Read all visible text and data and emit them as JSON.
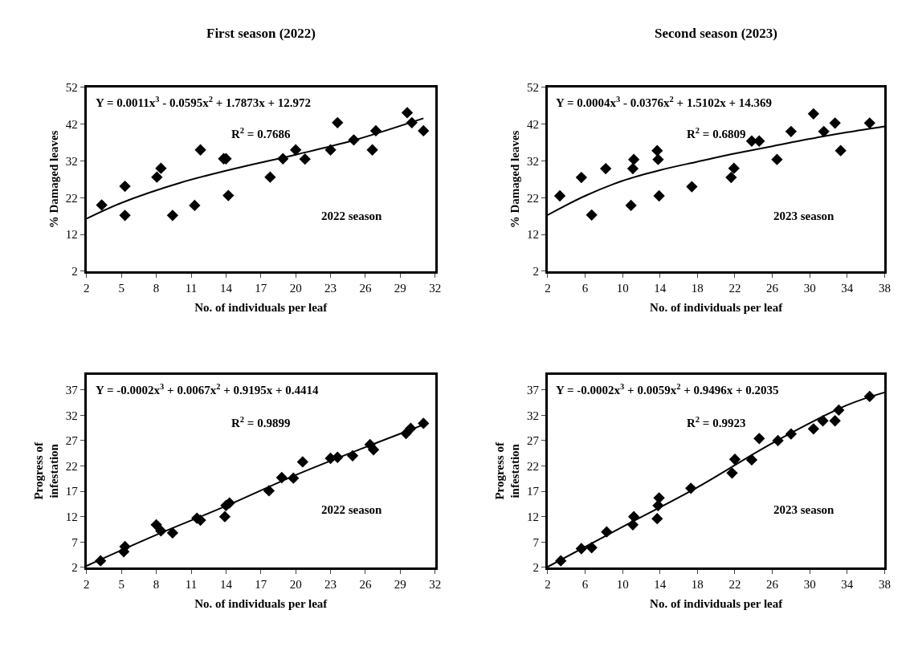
{
  "chart_data": [
    {
      "type": "scatter",
      "title": "First season (2022)",
      "xlabel": "No. of individuals per leaf",
      "ylabel": "% Damaged leaves",
      "xlim": [
        2,
        32
      ],
      "xticks": [
        2,
        5,
        8,
        11,
        14,
        17,
        20,
        23,
        26,
        29,
        32
      ],
      "ylim": [
        2,
        52
      ],
      "yticks": [
        2,
        12,
        22,
        32,
        42,
        52
      ],
      "marker": "diamond",
      "annotations": [
        "Y = 0.0011x$^{3}$ - 0.0595x$^{2}$ + 1.7873x + 12.972",
        "R$^{2}$ = 0.7686",
        "2022 season"
      ],
      "series": [
        {
          "color": "#000000",
          "x": [
            3.3,
            5.3,
            5.3,
            8.05,
            8.4,
            9.4,
            11.3,
            11.8,
            13.8,
            14.0,
            14.2,
            17.8,
            18.9,
            20.0,
            20.8,
            23.0,
            23.6,
            25.0,
            26.6,
            26.9,
            29.6,
            30.0,
            31.0
          ],
          "values": [
            20.0,
            25.1,
            17.2,
            27.6,
            30.0,
            17.2,
            19.9,
            35.0,
            32.6,
            32.6,
            22.6,
            27.6,
            32.6,
            35.0,
            32.5,
            35.0,
            42.4,
            37.7,
            35.0,
            40.2,
            45.1,
            42.4,
            40.2
          ]
        },
        {
          "type": "line",
          "marker": "none",
          "color": "#000000",
          "x": [
            2,
            5,
            10,
            15,
            20,
            25,
            31
          ],
          "values": [
            16.3,
            20.6,
            26.0,
            30.1,
            33.7,
            37.6,
            43.6
          ]
        }
      ]
    },
    {
      "type": "scatter",
      "title": "Second season (2023)",
      "xlabel": "No. of individuals per leaf",
      "ylabel": "% Damaged leaves",
      "xlim": [
        2,
        38
      ],
      "xticks": [
        2,
        6,
        10,
        14,
        18,
        22,
        26,
        30,
        34,
        38
      ],
      "ylim": [
        2,
        52
      ],
      "yticks": [
        2,
        12,
        22,
        32,
        42,
        52
      ],
      "marker": "diamond",
      "annotations": [
        "Y = 0.0004x$^{3}$ - 0.0376x$^{2}$ + 1.5102x + 14.369",
        "R$^{2}$ = 0.6809",
        "2023 season"
      ],
      "series": [
        {
          "color": "#000000",
          "x": [
            3.3,
            5.6,
            6.7,
            8.2,
            10.9,
            11.1,
            11.2,
            13.7,
            13.8,
            13.9,
            17.4,
            21.6,
            21.9,
            23.8,
            24.6,
            26.5,
            28.0,
            30.4,
            31.5,
            32.7,
            33.3,
            36.4
          ],
          "values": [
            22.5,
            27.5,
            17.3,
            29.9,
            19.9,
            29.9,
            32.4,
            34.8,
            32.4,
            22.5,
            25.0,
            27.5,
            30.0,
            37.4,
            37.4,
            32.4,
            40.0,
            44.8,
            40.0,
            42.3,
            34.8,
            42.3
          ]
        },
        {
          "type": "line",
          "marker": "none",
          "color": "#000000",
          "x": [
            2,
            6,
            10,
            14,
            18,
            22,
            26,
            30,
            34,
            38
          ],
          "values": [
            17.3,
            22.5,
            26.6,
            29.5,
            31.8,
            34.0,
            36.0,
            38.0,
            39.8,
            41.4
          ]
        }
      ]
    },
    {
      "type": "scatter",
      "xlabel": "No. of individuals per leaf",
      "ylabel": "Progress of\ninfestation",
      "xlim": [
        2,
        32
      ],
      "xticks": [
        2,
        5,
        8,
        11,
        14,
        17,
        20,
        23,
        26,
        29,
        32
      ],
      "ylim": [
        2,
        40
      ],
      "yticks": [
        2,
        7,
        12,
        17,
        22,
        27,
        32,
        37
      ],
      "marker": "diamond",
      "annotations": [
        "Y = -0.0002x$^{3}$ + 0.0067x$^{2}$ + 0.9195x + 0.4414",
        "R$^{2}$ = 0.9899",
        "2022 season"
      ],
      "series": [
        {
          "color": "#000000",
          "x": [
            3.2,
            5.2,
            5.3,
            8.0,
            8.4,
            9.4,
            11.5,
            11.8,
            13.9,
            14.0,
            14.3,
            17.7,
            18.8,
            19.8,
            20.6,
            23.0,
            23.6,
            24.9,
            26.4,
            26.7,
            29.5,
            29.9,
            31.0
          ],
          "values": [
            3.3,
            5.1,
            6.1,
            10.4,
            9.2,
            8.8,
            11.7,
            11.3,
            12.0,
            14.2,
            14.7,
            17.1,
            19.7,
            19.6,
            22.8,
            23.5,
            23.7,
            24.0,
            26.2,
            25.2,
            28.4,
            29.4,
            30.4
          ]
        },
        {
          "type": "line",
          "marker": "none",
          "color": "#000000",
          "x": [
            2,
            8,
            14,
            20,
            26,
            31.1
          ],
          "values": [
            2.3,
            8.4,
            14.1,
            20.2,
            25.7,
            30.2
          ]
        }
      ]
    },
    {
      "type": "scatter",
      "xlabel": "No. of individuals per leaf",
      "ylabel": "Progress of\ninfestation",
      "xlim": [
        2,
        38
      ],
      "xticks": [
        2,
        6,
        10,
        14,
        18,
        22,
        26,
        30,
        34,
        38
      ],
      "ylim": [
        2,
        40
      ],
      "yticks": [
        2,
        7,
        12,
        17,
        22,
        27,
        32,
        37
      ],
      "marker": "diamond",
      "annotations": [
        "Y = -0.0002x$^{3}$ + 0.0059x$^{2}$ + 0.9496x + 0.2035",
        "R$^{2}$ = 0.9923",
        "2023 season"
      ],
      "series": [
        {
          "color": "#000000",
          "x": [
            3.4,
            5.6,
            6.7,
            8.3,
            11.1,
            11.2,
            13.7,
            13.8,
            13.9,
            17.3,
            21.7,
            22.0,
            23.8,
            24.6,
            26.6,
            28.0,
            30.4,
            31.4,
            32.7,
            33.1,
            36.4
          ],
          "values": [
            3.3,
            5.7,
            5.9,
            9.0,
            10.4,
            12.0,
            11.6,
            14.2,
            15.7,
            17.6,
            20.6,
            23.3,
            23.2,
            27.4,
            27.0,
            28.3,
            29.3,
            30.9,
            30.9,
            33.0,
            35.7
          ]
        },
        {
          "type": "line",
          "marker": "none",
          "color": "#000000",
          "x": [
            2,
            10,
            18,
            26,
            34,
            38
          ],
          "values": [
            2.1,
            10.0,
            17.8,
            26.5,
            34.0,
            36.5
          ]
        }
      ]
    }
  ]
}
